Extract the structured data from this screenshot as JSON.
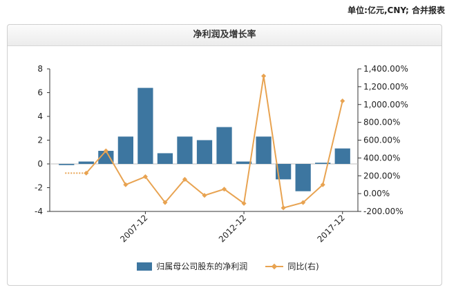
{
  "unit_note": "单位:亿元,CNY; 合并报表",
  "chart_data": {
    "type": "bar+line",
    "title": "净利润及增长率",
    "categories_shown": [
      "2007-12",
      "2012-12",
      "2017-12"
    ],
    "x": [
      2003,
      2004,
      2005,
      2006,
      2007,
      2008,
      2009,
      2010,
      2011,
      2012,
      2013,
      2014,
      2015,
      2016,
      2017
    ],
    "series": [
      {
        "name": "归属母公司股东的净利润",
        "type": "bar",
        "axis": "left",
        "color": "#3d76a0",
        "values": [
          -0.1,
          0.2,
          1.1,
          2.3,
          6.4,
          0.9,
          2.3,
          2.0,
          3.1,
          0.2,
          2.3,
          -1.3,
          -2.3,
          0.1,
          1.3
        ]
      },
      {
        "name": "同比(右)",
        "type": "line",
        "axis": "right",
        "color": "#e8a351",
        "values": [
          null,
          230,
          480,
          100,
          190,
          -100,
          160,
          -20,
          50,
          -110,
          1320,
          -160,
          -100,
          100,
          1040
        ]
      }
    ],
    "left_axis": {
      "min": -4,
      "max": 8,
      "ticks": [
        "8",
        "6",
        "4",
        "2",
        "0",
        "-2",
        "-4"
      ]
    },
    "right_axis": {
      "min": -200,
      "max": 1400,
      "ticks": [
        "1,400.00%",
        "1,200.00%",
        "1,000.00%",
        "800.00%",
        "600.00%",
        "400.00%",
        "200.00%",
        "0.00%",
        "-200.00%"
      ]
    },
    "legend": {
      "placement": "bottom",
      "items": [
        "归属母公司股东的净利润",
        "同比(右)"
      ]
    }
  }
}
